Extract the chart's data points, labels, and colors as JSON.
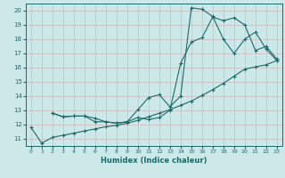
{
  "xlabel": "Humidex (Indice chaleur)",
  "bg_color": "#cce8e8",
  "line_color": "#1a6b6b",
  "grid_color": "#c8d8d8",
  "xlim": [
    -0.5,
    23.5
  ],
  "ylim": [
    10.5,
    20.5
  ],
  "xticks": [
    0,
    1,
    2,
    3,
    4,
    5,
    6,
    7,
    8,
    9,
    10,
    11,
    12,
    13,
    14,
    15,
    16,
    17,
    18,
    19,
    20,
    21,
    22,
    23
  ],
  "yticks": [
    11,
    12,
    13,
    14,
    15,
    16,
    17,
    18,
    19,
    20
  ],
  "line1_x": [
    0,
    1,
    2,
    3,
    4,
    5,
    6,
    7,
    8,
    9,
    10,
    11,
    12,
    13,
    14,
    15,
    16,
    17,
    18,
    19,
    20,
    21,
    22,
    23
  ],
  "line1_y": [
    11.8,
    10.7,
    11.1,
    11.25,
    11.4,
    11.55,
    11.7,
    11.85,
    11.95,
    12.1,
    12.3,
    12.55,
    12.8,
    13.05,
    13.35,
    13.65,
    14.05,
    14.45,
    14.9,
    15.4,
    15.9,
    16.05,
    16.2,
    16.5
  ],
  "line2_x": [
    2,
    3,
    4,
    5,
    6,
    7,
    8,
    9,
    10,
    11,
    12,
    13,
    14,
    15,
    16,
    17,
    18,
    19,
    20,
    21,
    22,
    23
  ],
  "line2_y": [
    12.8,
    12.55,
    12.6,
    12.6,
    12.2,
    12.2,
    12.1,
    12.2,
    12.5,
    12.35,
    12.5,
    13.0,
    16.3,
    17.8,
    18.1,
    19.55,
    19.3,
    19.5,
    19.0,
    17.2,
    17.5,
    16.6
  ],
  "line3_x": [
    2,
    3,
    4,
    5,
    6,
    7,
    8,
    9,
    10,
    11,
    12,
    13,
    14,
    15,
    16,
    17,
    18,
    19,
    20,
    21,
    22,
    23
  ],
  "line3_y": [
    12.8,
    12.55,
    12.6,
    12.6,
    12.45,
    12.2,
    12.1,
    12.2,
    13.05,
    13.9,
    14.1,
    13.25,
    14.0,
    20.2,
    20.1,
    19.6,
    18.0,
    17.0,
    18.0,
    18.5,
    17.3,
    16.5
  ]
}
